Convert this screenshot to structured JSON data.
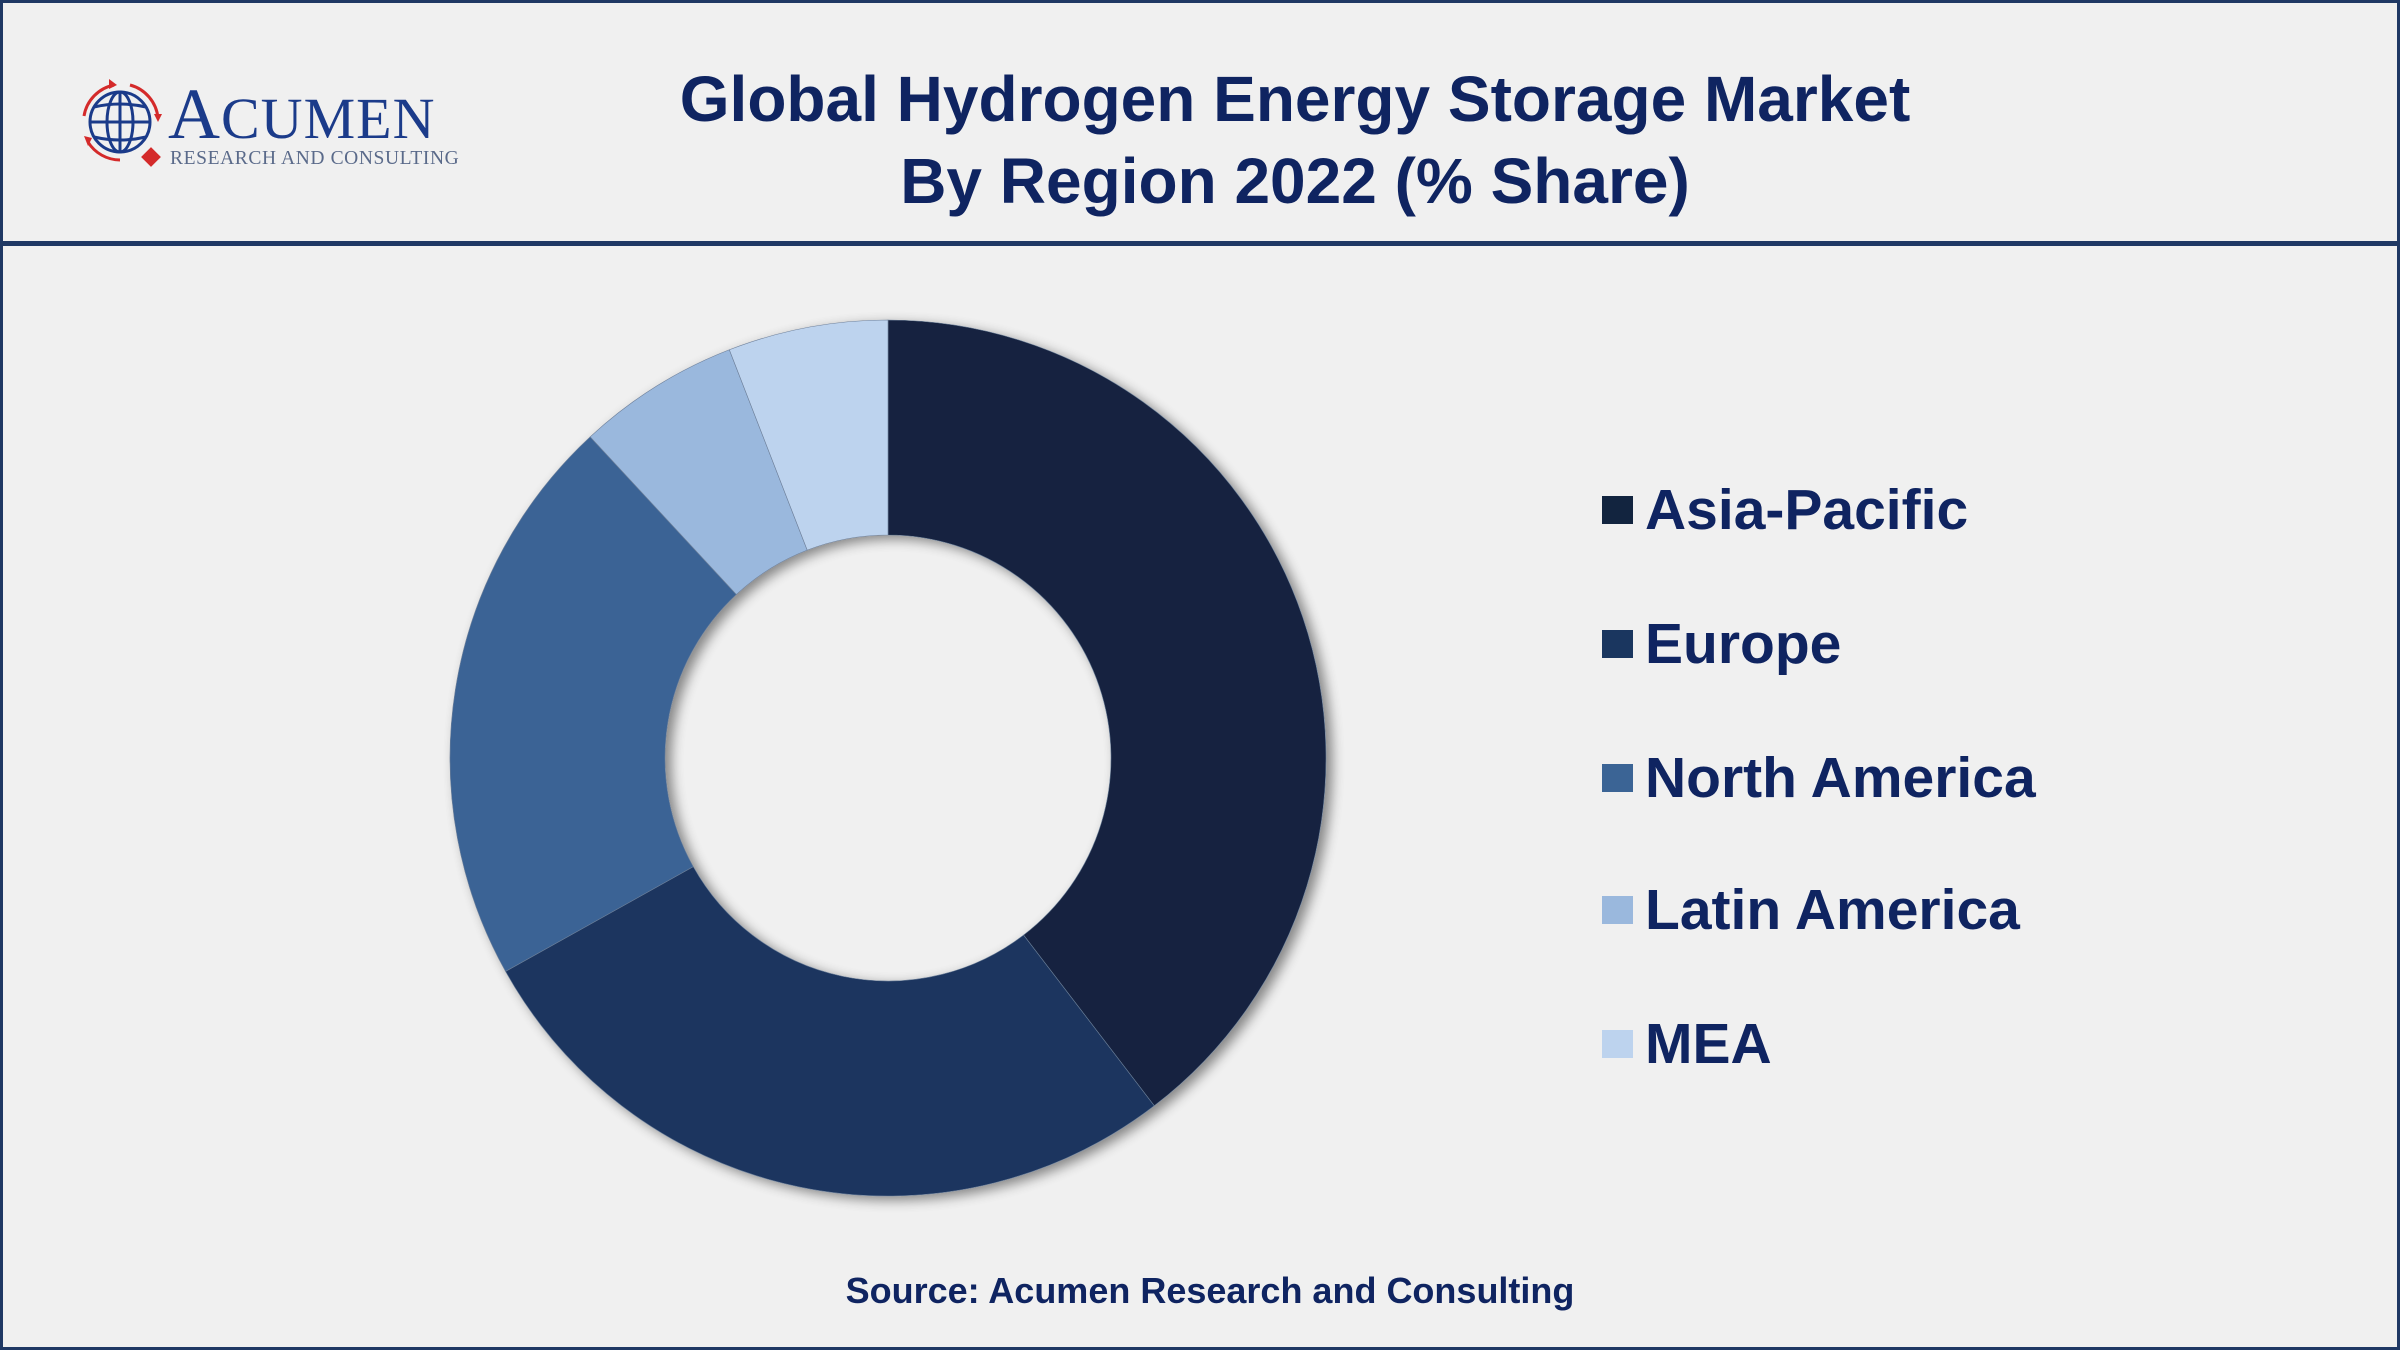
{
  "header": {
    "logo": {
      "name_initial": "A",
      "name_rest": "CUMEN",
      "subtitle": "RESEARCH AND CONSULTING",
      "icon": "globe-icon"
    },
    "title_line1": "Global Hydrogen Energy Storage Market",
    "title_line2": "By Region 2022 (% Share)"
  },
  "colors": {
    "frame": "#1f3864",
    "title_text": "#0f2461",
    "background": "#f0f0f0"
  },
  "chart_data": {
    "type": "pie",
    "variant": "donut",
    "title": "Global Hydrogen Energy Storage Market By Region 2022 (% Share)",
    "categories": [
      "Asia-Pacific",
      "Europe",
      "North America",
      "Latin America",
      "MEA"
    ],
    "values": [
      39.6,
      27.3,
      21.2,
      6.0,
      5.9
    ],
    "colors": [
      "#12243f",
      "#1a365f",
      "#3b6495",
      "#9ab8dd",
      "#bdd3ee"
    ],
    "unit": "% share (estimated from slice angles, no data labels shown)",
    "legend_position": "right",
    "start_angle": "12 o'clock, clockwise",
    "hole_ratio": 0.51
  },
  "legend": {
    "items": [
      {
        "label": "Asia-Pacific",
        "color": "#12243f"
      },
      {
        "label": "Europe",
        "color": "#1a365f"
      },
      {
        "label": "North America",
        "color": "#3b6495"
      },
      {
        "label": "Latin America",
        "color": "#9ab8dd"
      },
      {
        "label": "MEA",
        "color": "#bdd3ee"
      }
    ]
  },
  "footer": {
    "source": "Source: Acumen Research and Consulting"
  }
}
